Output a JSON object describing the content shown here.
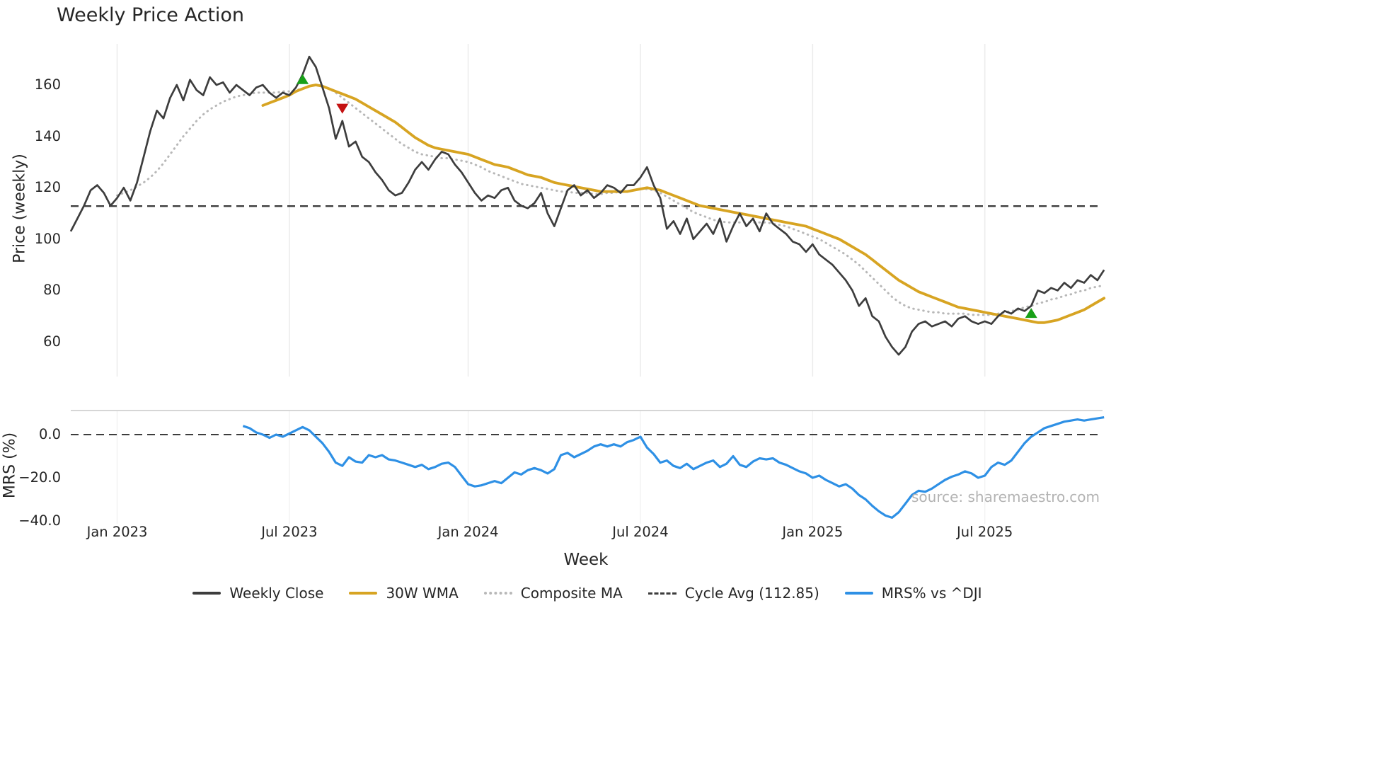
{
  "chart_data": {
    "type": "line",
    "title": "Weekly Price Action",
    "xlabel": "Week",
    "watermark": "source: sharemaestro.com",
    "x_unit": "week_index",
    "x_ticks": [
      {
        "label": "Jan 2023",
        "week": 7
      },
      {
        "label": "Jul 2023",
        "week": 33
      },
      {
        "label": "Jan 2024",
        "week": 60
      },
      {
        "label": "Jul 2024",
        "week": 86
      },
      {
        "label": "Jan 2025",
        "week": 112
      },
      {
        "label": "Jul 2025",
        "week": 138
      }
    ],
    "price_panel": {
      "ylabel": "Price (weekly)",
      "ylim": [
        52,
        176
      ],
      "y_ticks": [
        160,
        140,
        120,
        100,
        80,
        60
      ],
      "grid": "vertical-only",
      "cycle_avg": 112.85,
      "series": [
        {
          "name": "Weekly Close",
          "color": "#3d3d3d",
          "style": "solid",
          "start_week": 0,
          "values": [
            103,
            108,
            113,
            119,
            121,
            118,
            113,
            116,
            120,
            115,
            122,
            132,
            142,
            150,
            147,
            155,
            160,
            154,
            162,
            158,
            156,
            163,
            160,
            161,
            157,
            160,
            158,
            156,
            159,
            160,
            157,
            155,
            157,
            156,
            159,
            164,
            171,
            167,
            159,
            151,
            139,
            146,
            136,
            138,
            132,
            130,
            126,
            123,
            119,
            117,
            118,
            122,
            127,
            130,
            127,
            131,
            134,
            133,
            129,
            126,
            122,
            118,
            115,
            117,
            116,
            119,
            120,
            115,
            113,
            112,
            114,
            118,
            110,
            105,
            112,
            119,
            121,
            117,
            119,
            116,
            118,
            121,
            120,
            118,
            121,
            121,
            124,
            128,
            121,
            116,
            104,
            107,
            102,
            108,
            100,
            103,
            106,
            102,
            108,
            99,
            105,
            110,
            105,
            108,
            103,
            110,
            106,
            104,
            102,
            99,
            98,
            95,
            98,
            94,
            92,
            90,
            87,
            84,
            80,
            74,
            77,
            70,
            68,
            62,
            58,
            55,
            58,
            64,
            67,
            68,
            66,
            67,
            68,
            66,
            69,
            70,
            68,
            67,
            68,
            67,
            70,
            72,
            71,
            73,
            72,
            74,
            80,
            79,
            81,
            80,
            83,
            81,
            84,
            83,
            86,
            84,
            88
          ]
        },
        {
          "name": "30W WMA",
          "color": "#d7a422",
          "style": "solid",
          "start_week": 29,
          "values": [
            152,
            153,
            154,
            155,
            156,
            157.5,
            158.5,
            159.5,
            160,
            159.5,
            158.5,
            157.5,
            156.5,
            155.5,
            154.5,
            153,
            151.5,
            150,
            148.5,
            147,
            145.5,
            143.5,
            141.5,
            139.5,
            138,
            136.5,
            135.5,
            135,
            134.5,
            134,
            133.5,
            133,
            132,
            131,
            130,
            129,
            128.5,
            128,
            127,
            126,
            125,
            124.5,
            124,
            123,
            122,
            121.5,
            121,
            120.5,
            120,
            119.5,
            119,
            118.5,
            118.5,
            118.5,
            118.5,
            118.5,
            119,
            119.5,
            120,
            119.5,
            119,
            118,
            117,
            116,
            115,
            114,
            113,
            112.5,
            112,
            111.5,
            111,
            110.5,
            110,
            109.5,
            109,
            108.5,
            108,
            107.5,
            107,
            106.5,
            106,
            105.5,
            105,
            104,
            103,
            102,
            101,
            100,
            98.5,
            97,
            95.5,
            94,
            92,
            90,
            88,
            86,
            84,
            82.5,
            81,
            79.5,
            78.5,
            77.5,
            76.5,
            75.5,
            74.5,
            73.5,
            73,
            72.5,
            72,
            71.5,
            71,
            70.5,
            70,
            69.5,
            69,
            68.5,
            68,
            67.5,
            67.5,
            68,
            68.5,
            69.5,
            70.5,
            71.5,
            72.5,
            74,
            75.5,
            77
          ]
        },
        {
          "name": "Composite MA",
          "color": "#b8b8b8",
          "style": "dotted",
          "start_week": 7,
          "values": [
            117,
            118,
            119,
            120.5,
            122,
            124,
            126.5,
            129.5,
            133,
            136.5,
            140,
            143,
            146,
            148.5,
            150.5,
            152,
            153.5,
            154.5,
            155.5,
            156,
            156.5,
            157,
            157,
            157,
            157,
            157.5,
            157.5,
            158,
            158.5,
            159.5,
            160,
            159.5,
            158.5,
            157,
            155,
            153,
            151,
            149,
            147,
            145,
            143,
            141,
            139,
            137,
            135.5,
            134,
            133,
            132.5,
            132,
            131.5,
            131.5,
            131,
            130.5,
            130,
            129,
            128,
            126.5,
            125.5,
            124.5,
            123.5,
            122.5,
            121.5,
            121,
            120.5,
            120,
            119.5,
            119,
            118.5,
            118.5,
            118,
            118,
            118,
            117.5,
            117.5,
            118,
            118,
            118.5,
            118.5,
            119,
            119.5,
            119.5,
            119,
            118,
            116.5,
            115,
            113.5,
            112,
            110.5,
            109.5,
            108.5,
            107.5,
            107,
            106.5,
            106.5,
            106.5,
            106.5,
            106.5,
            106.5,
            106.5,
            106,
            105.5,
            105,
            104,
            103,
            102,
            101,
            100,
            98.5,
            97,
            95.5,
            94,
            92,
            90,
            87.5,
            85,
            82.5,
            80,
            77.5,
            75.5,
            74,
            73,
            72.5,
            72,
            71.5,
            71.5,
            71,
            71,
            71,
            71,
            70.5,
            70.5,
            70.5,
            70.5,
            71,
            71.5,
            72,
            72.5,
            73.5,
            74,
            75,
            75.5,
            76.5,
            77,
            78,
            78.5,
            79.5,
            80,
            81,
            81.5,
            82
          ]
        }
      ],
      "signals": [
        {
          "type": "buy",
          "week": 35,
          "price": 162,
          "color": "#18a018"
        },
        {
          "type": "sell",
          "week": 41,
          "price": 151,
          "color": "#c41212"
        },
        {
          "type": "buy",
          "week": 145,
          "price": 71,
          "color": "#18a018"
        }
      ]
    },
    "mrs_panel": {
      "ylabel": "MRS (%)",
      "ylim": [
        -42,
        11
      ],
      "y_ticks": [
        {
          "label": "0.0",
          "value": 0
        },
        {
          "label": "−20.0",
          "value": -20
        },
        {
          "label": "−40.0",
          "value": -40
        }
      ],
      "zero_line": 0,
      "series": [
        {
          "name": "MRS% vs ^DJI",
          "color": "#2e90e5",
          "style": "solid",
          "start_week": 26,
          "values": [
            4,
            3,
            1,
            0,
            -1.5,
            0,
            -1,
            0.5,
            2,
            3.5,
            2,
            -1,
            -4,
            -8,
            -13,
            -14.5,
            -10.5,
            -12.5,
            -13,
            -9.5,
            -10.5,
            -9.5,
            -11.5,
            -12,
            -13,
            -14,
            -15,
            -14,
            -16,
            -15,
            -13.5,
            -13,
            -15,
            -19,
            -23,
            -24,
            -23.5,
            -22.5,
            -21.5,
            -22.5,
            -20,
            -17.5,
            -18.5,
            -16.5,
            -15.5,
            -16.5,
            -18,
            -16,
            -9.5,
            -8.5,
            -10.5,
            -9,
            -7.5,
            -5.5,
            -4.5,
            -5.5,
            -4.5,
            -5.5,
            -3.5,
            -2.5,
            -1,
            -6,
            -9,
            -13,
            -12,
            -14.5,
            -15.5,
            -13.5,
            -16,
            -14.5,
            -13,
            -12,
            -15,
            -13.5,
            -10,
            -14,
            -15,
            -12.5,
            -11,
            -11.5,
            -11,
            -13,
            -14,
            -15.5,
            -17,
            -18,
            -20,
            -19,
            -21,
            -22.5,
            -24,
            -23,
            -25,
            -28,
            -30,
            -33,
            -35.5,
            -37.5,
            -38.5,
            -36,
            -32,
            -28,
            -26,
            -26.5,
            -25,
            -23,
            -21,
            -19.5,
            -18.5,
            -17,
            -18,
            -20,
            -19,
            -15,
            -13,
            -14,
            -12,
            -8,
            -4,
            -1,
            1,
            3,
            4,
            5,
            6,
            6.5,
            7,
            6.5,
            7,
            7.5,
            8
          ]
        }
      ]
    },
    "legend": [
      {
        "label": "Weekly Close",
        "color": "#3d3d3d",
        "style": "solid"
      },
      {
        "label": "30W WMA",
        "color": "#d7a422",
        "style": "solid"
      },
      {
        "label": "Composite MA",
        "color": "#b8b8b8",
        "style": "dotted"
      },
      {
        "label": "Cycle Avg (112.85)",
        "color": "#3d3d3d",
        "style": "dashed"
      },
      {
        "label": "MRS% vs ^DJI",
        "color": "#2e90e5",
        "style": "solid"
      }
    ]
  }
}
